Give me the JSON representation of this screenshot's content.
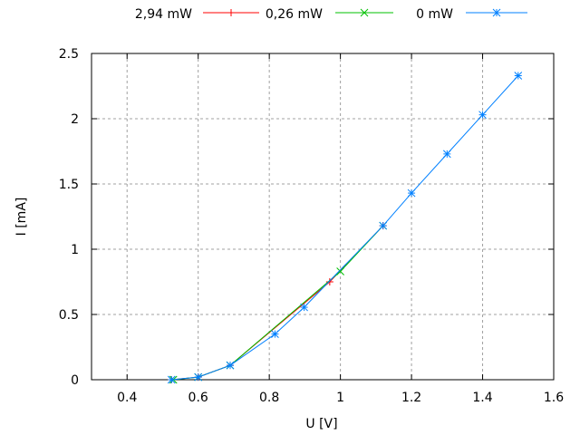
{
  "chart_data": {
    "type": "line",
    "title": "",
    "xlabel": "U [V]",
    "ylabel": "I [mA]",
    "xlim": [
      0.3,
      1.6
    ],
    "ylim": [
      0,
      2.5
    ],
    "xticks": [
      "0.4",
      "0.6",
      "0.8",
      "1",
      "1.2",
      "1.4",
      "1.6"
    ],
    "yticks": [
      "0",
      "0.5",
      "1",
      "1.5",
      "2",
      "2.5"
    ],
    "grid": true,
    "legend_position": "top",
    "series": [
      {
        "name": "2,94 mW",
        "color": "#ff0000",
        "marker": "plus",
        "x": [
          0.525,
          0.6,
          0.69,
          0.97,
          1.12
        ],
        "y": [
          0.0,
          0.02,
          0.11,
          0.75,
          1.18
        ]
      },
      {
        "name": "0,26 mW",
        "color": "#00c000",
        "marker": "cross",
        "x": [
          0.53,
          0.6,
          0.69,
          1.0,
          1.12
        ],
        "y": [
          0.0,
          0.02,
          0.11,
          0.83,
          1.18
        ]
      },
      {
        "name": "0 mW",
        "color": "#0080ff",
        "marker": "star",
        "x": [
          0.525,
          0.6,
          0.69,
          0.816,
          0.898,
          1.12,
          1.2,
          1.3,
          1.4,
          1.5
        ],
        "y": [
          0.0,
          0.02,
          0.11,
          0.35,
          0.555,
          1.18,
          1.43,
          1.73,
          2.03,
          2.33
        ]
      }
    ]
  }
}
